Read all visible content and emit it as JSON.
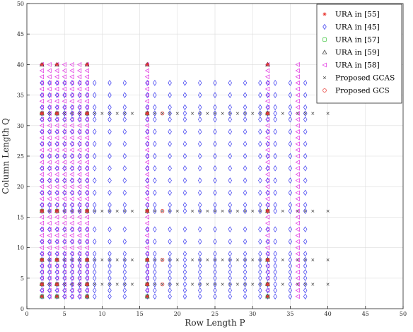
{
  "chart_data": {
    "type": "scatter",
    "title": "",
    "xlabel": "Row Length P",
    "ylabel": "Column Length Q",
    "xlim": [
      0,
      50
    ],
    "ylim": [
      0,
      50
    ],
    "xticks": [
      0,
      5,
      10,
      15,
      20,
      25,
      30,
      35,
      40,
      45,
      50
    ],
    "yticks": [
      0,
      5,
      10,
      15,
      20,
      25,
      30,
      35,
      40,
      45,
      50
    ],
    "grid": true,
    "legend_position": "top-right",
    "series": [
      {
        "name": "URA in [55]",
        "marker": "asterisk",
        "color": "#e8322c",
        "rows": [
          2,
          4,
          8,
          16,
          32
        ],
        "cols": [
          2,
          4,
          8,
          16,
          32
        ],
        "extra": [
          [
            2,
            40
          ],
          [
            4,
            40
          ],
          [
            8,
            40
          ],
          [
            16,
            40
          ],
          [
            32,
            40
          ]
        ]
      },
      {
        "name": "URA in [45]",
        "marker": "diamond",
        "color": "#3a3af0",
        "rows": [
          2,
          3,
          4,
          5,
          6,
          7,
          8,
          9,
          11,
          13,
          16,
          17,
          19,
          21,
          23,
          25,
          27,
          29,
          31,
          32,
          33,
          35,
          37
        ],
        "cols": [
          2,
          3,
          4,
          5,
          6,
          7,
          8,
          9,
          11,
          13,
          16,
          17,
          19,
          21,
          23,
          25,
          27,
          29,
          31,
          32,
          33,
          35,
          37
        ]
      },
      {
        "name": "URA in [57]",
        "marker": "square",
        "color": "#2fbf2f",
        "rows": [
          2,
          4,
          8,
          16,
          32
        ],
        "cols": [
          2,
          4,
          8,
          16,
          32
        ]
      },
      {
        "name": "URA in [59]",
        "marker": "triangle-up",
        "color": "#333333",
        "rows": [
          2,
          4,
          8,
          16,
          32
        ],
        "cols": [
          2,
          4,
          8,
          16,
          32
        ],
        "extra": [
          [
            2,
            40
          ],
          [
            4,
            40
          ],
          [
            8,
            40
          ],
          [
            16,
            40
          ],
          [
            32,
            40
          ]
        ]
      },
      {
        "name": "URA in [58]",
        "marker": "triangle-left",
        "color": "#e030e0",
        "rows": [
          2,
          3,
          4,
          5,
          6,
          7,
          8,
          16,
          32,
          36
        ],
        "cols": [
          2,
          3,
          4,
          5,
          6,
          7,
          8,
          9,
          10,
          11,
          12,
          13,
          14,
          15,
          16,
          17,
          18,
          19,
          20,
          21,
          22,
          23,
          24,
          25,
          26,
          27,
          28,
          29,
          30,
          31,
          32,
          33,
          34,
          35,
          36,
          37,
          38,
          39,
          40
        ]
      },
      {
        "name": "Proposed GCAS",
        "marker": "x",
        "color": "#444444",
        "rows": [
          2,
          3,
          4,
          5,
          6,
          7,
          8,
          9,
          10,
          11,
          12,
          13,
          14,
          16,
          17,
          18,
          19,
          20,
          22,
          23,
          24,
          25,
          26,
          27,
          28,
          29,
          30,
          31,
          32,
          34,
          36,
          37,
          38,
          40
        ],
        "cols": [
          4,
          8,
          16,
          32
        ]
      },
      {
        "name": "Proposed GCS",
        "marker": "circle",
        "color": "#e8322c",
        "rows": [
          2,
          4,
          8,
          16,
          18,
          32
        ],
        "cols": [
          4,
          8,
          16,
          32
        ]
      }
    ]
  }
}
